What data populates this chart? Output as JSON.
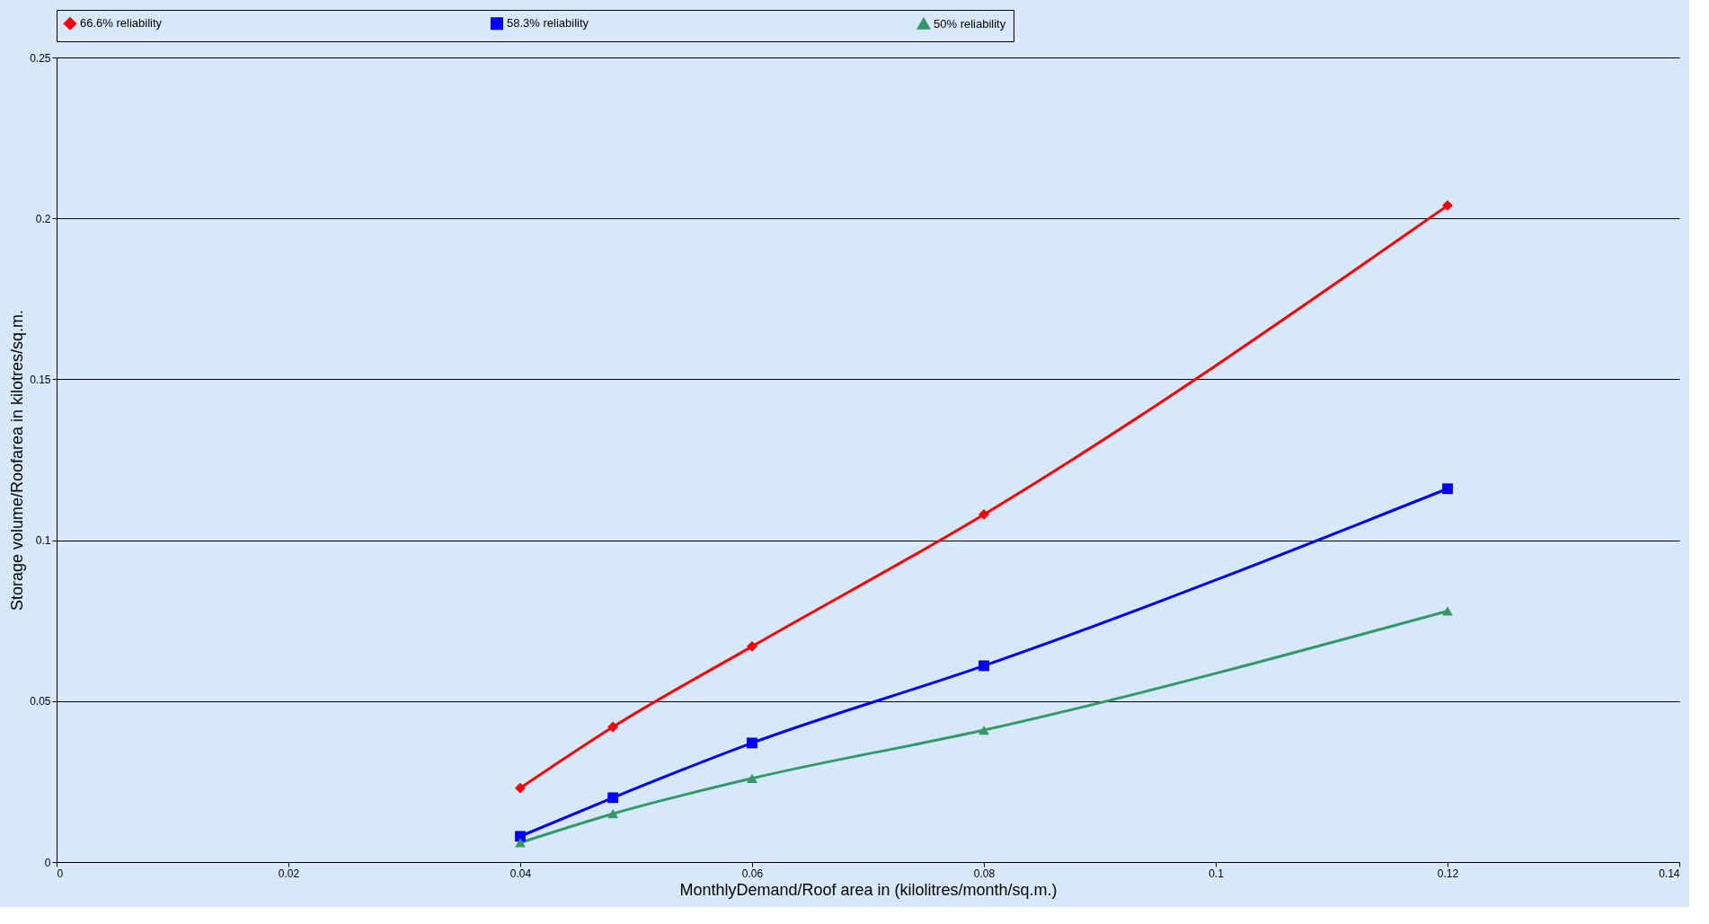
{
  "chart_data": {
    "type": "line",
    "xlabel": "MonthlyDemand/Roof area in (kilolitres/month/sq.m.)",
    "ylabel": "Storage volume/Roofarea in kilotres/sq.m.",
    "x": [
      0.04,
      0.048,
      0.06,
      0.08,
      0.12
    ],
    "series": [
      {
        "name": "66.6% reliability",
        "color": "#ff0000",
        "marker": "diamond",
        "values": [
          0.023,
          0.042,
          0.067,
          0.108,
          0.204
        ]
      },
      {
        "name": "58.3% reliability",
        "color": "#0000ff",
        "marker": "square",
        "values": [
          0.008,
          0.02,
          0.037,
          0.061,
          0.116
        ]
      },
      {
        "name": "50% reliability",
        "color": "#339966",
        "marker": "triangle",
        "values": [
          0.006,
          0.015,
          0.026,
          0.041,
          0.078
        ]
      }
    ],
    "xlim": [
      0,
      0.14
    ],
    "xticks": [
      0,
      0.02,
      0.04,
      0.06,
      0.08,
      0.1,
      0.12,
      0.14
    ],
    "ylim": [
      0,
      0.25
    ],
    "yticks": [
      0,
      0.05,
      0.1,
      0.15,
      0.2,
      0.25
    ],
    "grid": "y",
    "legend": "top",
    "line_style": "solid"
  }
}
